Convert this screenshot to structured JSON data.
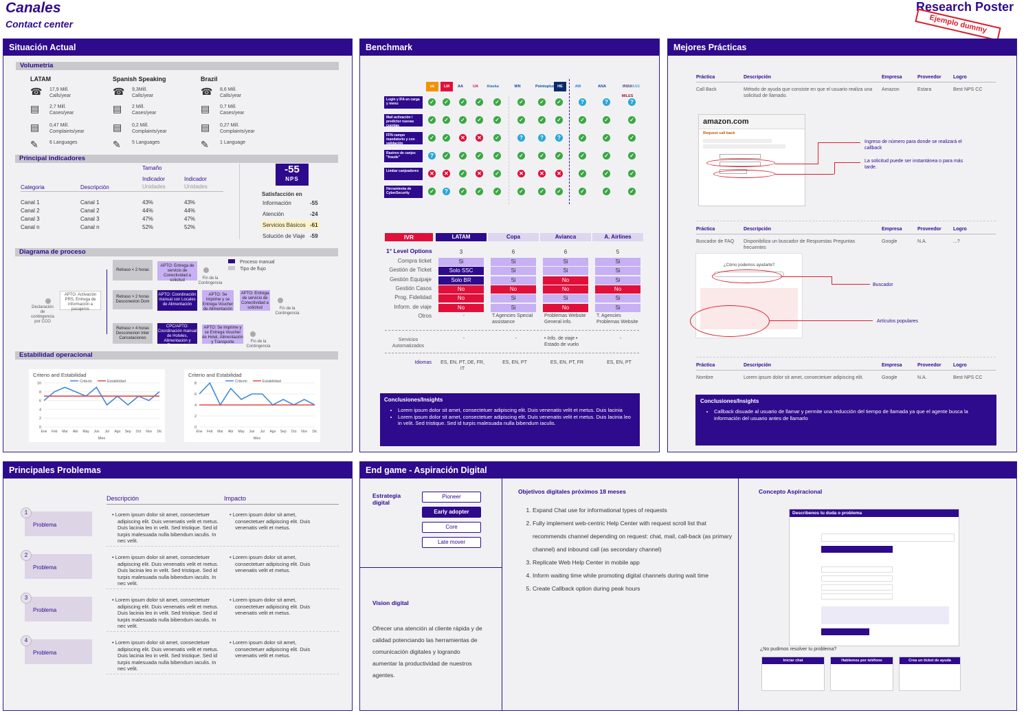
{
  "header": {
    "title": "Canales",
    "subtitle": "Contact center",
    "right_title": "Research Poster",
    "stamp": "Ejemplo dummy"
  },
  "sit": {
    "title": "Situación Actual",
    "volumetria": "Volumetria",
    "regions": [
      {
        "name": "LATAM",
        "calls": "17,9 Mill.",
        "calls_u": "Calls/year",
        "cases": "2,7 Mill.",
        "cases_u": "Cases/year",
        "compl": "0,47 Mill.",
        "compl_u": "Complaints/year",
        "lang": "6 Languages"
      },
      {
        "name": "Spanish Speaking",
        "calls": "9,3Mill.",
        "calls_u": "Calls/year",
        "cases": "2 Mill.",
        "cases_u": "Cases/year",
        "compl": "0,2 Mill.",
        "compl_u": "Complaints/year",
        "lang": "5 Languages"
      },
      {
        "name": "Brazil",
        "calls": "8,6 Mill.",
        "calls_u": "Calls/year",
        "cases": "0,7 Mill.",
        "cases_u": "Cases/year",
        "compl": "0,27 Mill.",
        "compl_u": "Complaints/year",
        "lang": "1 Language"
      }
    ],
    "indicadores": "Principal indicadores",
    "tamano": "Tamaño",
    "col_cat": "Categoria",
    "col_desc": "Descripción",
    "col_ind1": "Indicador",
    "col_ind2": "Indicador",
    "unid1": "Unidades",
    "unid2": "Unidades",
    "rows": [
      {
        "c": "Canal 1",
        "d": "Canal 1",
        "a": "43%",
        "b": "43%"
      },
      {
        "c": "Canal 2",
        "d": "Canal 2",
        "a": "44%",
        "b": "44%"
      },
      {
        "c": "Canal 3",
        "d": "Canal 3",
        "a": "47%",
        "b": "47%"
      },
      {
        "c": "Canal n",
        "d": "Canal n",
        "a": "52%",
        "b": "52%"
      }
    ],
    "nps": "-55",
    "nps_label": "NPS",
    "sat_title": "Satisfacción en",
    "sat": [
      {
        "k": "Información",
        "v": "-55"
      },
      {
        "k": "Atención",
        "v": "-24"
      },
      {
        "k": "Servicios Básicos",
        "v": "-61"
      },
      {
        "k": "Solución de Viaje",
        "v": "-59"
      }
    ],
    "diagrama": "Diagrama de proceso",
    "estab": "Estabilidad operacional",
    "proc": {
      "start": "Declaración de contingencia por CCO",
      "apto": "APTO: Activación PRS, Entrega de información a pasajeros",
      "r1": "Retraso < 2 horas",
      "r2": "Retraso > 2 horas Desconexion Dom",
      "r3": "Retraso > 4 horas Desconexion Inter Cancelaciones",
      "a1": "APTO: Entrega de servicio de Conectividad a solicitud",
      "a2": "APTO: Coordinación manual con Locales de Alimentación",
      "a2b": "APTO: Se Imprime y se Entrega Voucher de Alimentación",
      "a2c": "APTO: Entrega de servicio de Conectividad a solicitud",
      "a3": "CPC/APTO: Coordinación manual de Hoteles, Alimentación y Transporte",
      "a3b": "APTO: Se Imprime y se Entrega Voucher de Hotel, Alimentación y Transporte",
      "fin1": "Fin de la Contingencia",
      "fin2": "Fin de la Contingencia",
      "fin3": "Fin de la Contingencia",
      "leg1": "Proceso manual",
      "leg2": "Tipo de flujo"
    }
  },
  "chart_data": [
    {
      "type": "line",
      "title": "Criterio and Estabilidad",
      "series": [
        {
          "name": "Criterio",
          "values": [
            6,
            8,
            9,
            8,
            7,
            9,
            5,
            7,
            5,
            7,
            6,
            8
          ]
        },
        {
          "name": "Estabilidad",
          "values": [
            7,
            7,
            7,
            7,
            7,
            7,
            7,
            7,
            7,
            7,
            7,
            7
          ]
        }
      ],
      "categories": [
        "Ene",
        "Feb",
        "Mar",
        "Abr",
        "May",
        "Jun",
        "Jul",
        "Ago",
        "Sep",
        "Oct",
        "Nov",
        "Dic"
      ],
      "xlabel": "Mes",
      "ylim": [
        0,
        10
      ]
    },
    {
      "type": "line",
      "title": "Criterio and Estabilidad",
      "series": [
        {
          "name": "Criterio",
          "values": [
            6,
            8,
            4,
            7,
            5,
            6,
            6,
            4,
            5,
            4,
            5,
            4
          ]
        },
        {
          "name": "Estabilidad",
          "values": [
            4,
            4,
            4,
            4,
            4,
            4,
            4,
            4,
            4,
            4,
            4,
            4
          ]
        }
      ],
      "categories": [
        "Ene",
        "Feb",
        "Mar",
        "Abr",
        "May",
        "Jun",
        "Jul",
        "Ago",
        "Sep",
        "Oct",
        "Nov",
        "Dic"
      ],
      "xlabel": "Mes",
      "ylim": [
        0,
        8
      ]
    }
  ],
  "bench": {
    "title": "Benchmark",
    "rows": [
      "Login y IFA en carga y menu",
      "Mail activación / predictor nuevas cuentas",
      "FFN campo mandatorio y con validación",
      "Rastreo de canjes \"fraude\"",
      "Limitar canjeadores",
      "Herramienta de CyberSecurity"
    ],
    "logos": [
      "ok",
      "LM",
      "AA",
      "UA",
      "Alaska",
      "WN",
      "Pointsplus",
      "HE",
      "AW",
      "ANA",
      "ASIA MILES",
      "SKYPASS"
    ],
    "grid": [
      [
        "g",
        "g",
        "g",
        "g",
        "g",
        "g",
        "g",
        "g",
        "q",
        "q",
        "q"
      ],
      [
        "g",
        "g",
        "g",
        "g",
        "g",
        "g",
        "g",
        "g",
        "g",
        "g",
        "g"
      ],
      [
        "g",
        "g",
        "r",
        "r",
        "g",
        "q",
        "q",
        "q",
        "g",
        "g",
        "g"
      ],
      [
        "q",
        "g",
        "g",
        "g",
        "g",
        "g",
        "g",
        "g",
        "g",
        "g",
        "g"
      ],
      [
        "r",
        "r",
        "g",
        "r",
        "g",
        "r",
        "r",
        "r",
        "g",
        "g",
        "g"
      ],
      [
        "g",
        "q",
        "g",
        "g",
        "g",
        "g",
        "g",
        "g",
        "g",
        "g",
        "g"
      ]
    ],
    "ivr": "IVR",
    "cols": [
      "LATAM",
      "Copa",
      "Avianca",
      "A. Airlines"
    ],
    "first": "1° Level Options",
    "counts": [
      "3",
      "6",
      "6",
      "5"
    ],
    "opts": [
      "Compra ticket",
      "Gestión de Ticket",
      "Gestión Equipaje",
      "Gestión Casos",
      "Prog. Fidelidad",
      "Inform. de viaje",
      "Otros"
    ],
    "vals": [
      [
        "Si",
        "Si",
        "Si",
        "Si"
      ],
      [
        "Solo SSC",
        "Si",
        "Si",
        "Si"
      ],
      [
        "Solo BR",
        "Si",
        "No",
        "Si"
      ],
      [
        "No",
        "No",
        "No",
        "No"
      ],
      [
        "No",
        "Si",
        "Si",
        "Si"
      ],
      [
        "No",
        "Si",
        "No",
        "Si"
      ]
    ],
    "otros": [
      "-",
      "T.Agencies Special assistance",
      "Problemas Website General info.",
      "T. Agencies Problemas Website"
    ],
    "serv": "Servicios Automatizados",
    "serv_vals": [
      "-",
      "-",
      "• Info. de viaje • Estado de vuelo",
      "-"
    ],
    "idiomas": "Idiomas",
    "idi_vals": [
      "ES, EN, PT, DE, FR, IT",
      "ES, EN, PT",
      "ES, EN, PT, FR",
      "ES, EN, PT"
    ],
    "concl": "Conclusiones/Insights",
    "bul1": "Lorem ipsum dolor sit amet, consectetuer adipiscing elit. Duis venenatis velit et metus. Duis lacinia",
    "bul2": "Lorem ipsum dolor sit amet, consectetuer adipiscing elit. Duis venenatis velit et metus. Duis lacinia leo in velit. Sed tristique. Sed id turpis malesuada nulla bibendum iaculis."
  },
  "mp": {
    "title": "Mejores Prácticas",
    "h": [
      "Práctica",
      "Descripción",
      "Empresa",
      "Proveedor",
      "Logro"
    ],
    "r1": [
      "Call Back",
      "Método de ayuda que consiste en que el usuario realiza una solicitud de llamado.",
      "Amazon",
      "Estara",
      "Best NPS CC"
    ],
    "r2": [
      "Buscador de FAQ",
      "Disponibiliza un buscador de Respuestas Preguntas frecuentes",
      "Google",
      "N.A.",
      "...?"
    ],
    "r3": [
      "Nombre",
      "Lorem ipsum dolor sit amet, consectetuer adipiscing elit.",
      "Google",
      "N.A.",
      "Best NPS CC"
    ],
    "ann1": "Ingreso de número para donde se realizará el callback",
    "ann2": "La solicitud puede ser instantánea o para más tarde.",
    "ann3": "Buscador",
    "ann4": "Artículos populares",
    "amazon": "amazon.com",
    "rc": "Request call back",
    "goog": "¿Cómo podemos ayudarte?",
    "concl": "Conclusiones/Insights",
    "concl_t": "Callback disuade al usuario de llamar y permite una reducción del tiempo de llamada ya que el agente busca la información del usuario antes de llamarlo"
  },
  "pp": {
    "title": "Principales Problemas",
    "desc": "Descripción",
    "imp": "Impacto",
    "label": "Problema",
    "d": "Lorem ipsum dolor sit amet, consectetuer adipiscing elit. Duis venenatis velit et metus. Duis lacinia leo in velit. Sed tristique. Sed id turpis malesuada nulla bibendum iaculis. In nec velit.",
    "i": "Lorem ipsum dolor sit amet, consectetuer adipiscing elit. Duis venenatis velit et metus.",
    "nums": [
      "1",
      "2",
      "3",
      "4"
    ]
  },
  "eg": {
    "title": "End game - Aspiración Digital",
    "estr": "Estrategia digital",
    "levels": [
      "Pioneer",
      "Early adopter",
      "Core",
      "Late mover"
    ],
    "vis": "Vision digital",
    "vis_t": "Ofrecer una atención al cliente rápida y de calidad potenciando las herramientas de comunicación digitales y logrando aumentar la productividad de nuestros agentes.",
    "obj": "Objetivos digitales próximos 18 meses",
    "items": [
      "Expand Chat use for informational types of requests",
      "Fully implement web-centric Help Center with request scroll list that recommends channel depending on request: chat, mail, call-back (as primary channel) and inbound call (as secondary channel)",
      "Replicate Web Help Center in mobile app",
      "Inform waiting time while promoting digital channels during wait time",
      "Create Callback option during peak hours"
    ],
    "conc": "Concepto Aspiracional",
    "form_t": "Describenos tu duda o problema",
    "no": "¿No pudimos resolver tu problema?",
    "c1": "Iniciar chat",
    "c2": "Hablemos por teléfono",
    "c3": "Crea un ticket de ayuda"
  }
}
